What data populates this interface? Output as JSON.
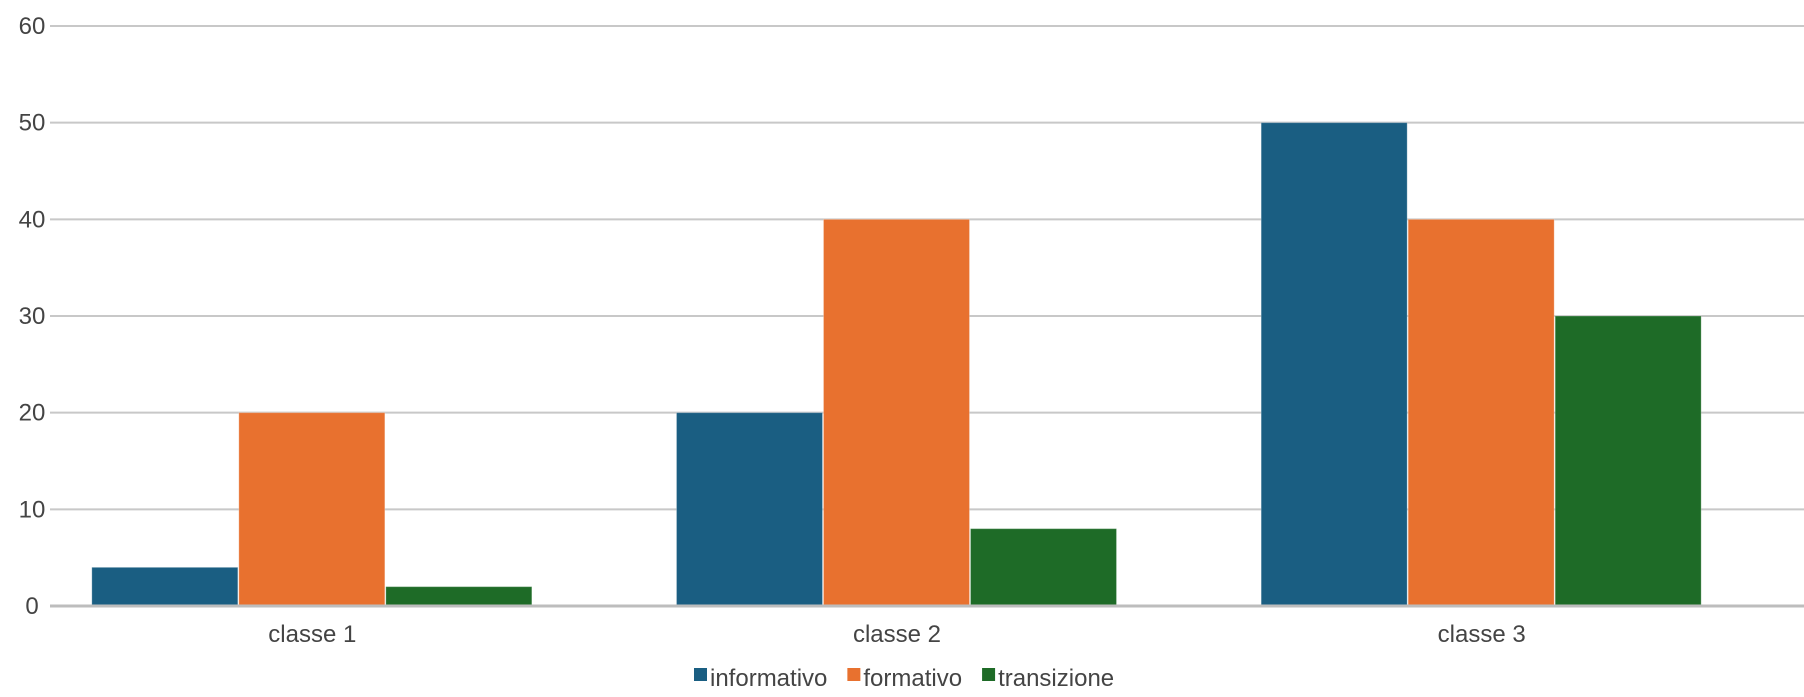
{
  "chart_data": {
    "type": "bar",
    "categories": [
      "classe 1",
      "classe 2",
      "classe 3"
    ],
    "series": [
      {
        "name": "informativo",
        "values": [
          4,
          20,
          50
        ],
        "color": "#1a5e82"
      },
      {
        "name": "formativo",
        "values": [
          20,
          40,
          40
        ],
        "color": "#e8712f"
      },
      {
        "name": "transizione",
        "values": [
          2,
          8,
          30
        ],
        "color": "#1e6b27"
      }
    ],
    "yticks": [
      "0",
      "10",
      "20",
      "30",
      "40",
      "50",
      "60"
    ],
    "ylim": [
      0,
      60
    ],
    "grid": true,
    "legend_position": "bottom"
  }
}
